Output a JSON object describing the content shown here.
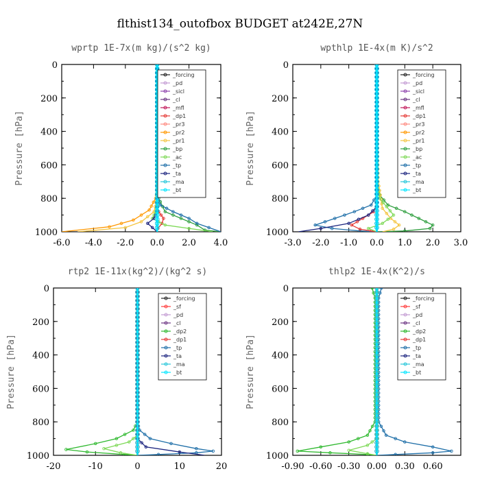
{
  "title": "flthist134_outofbox  BUDGET at242E,27N",
  "colors": {
    "forcing": "#222222",
    "pd": "#c39bd3",
    "sicl": "#8e44ad",
    "cl": "#6c3483",
    "mfl": "#c2185b",
    "dp1": "#e53935",
    "pr3": "#ff8a80",
    "pr2": "#ff9800",
    "pr1": "#f4c542",
    "bp": "#2e9e3e",
    "ac": "#7ed957",
    "tp": "#1f6fa8",
    "ta": "#1a237e",
    "ma": "#26c6da",
    "bt": "#00e5ff",
    "sf": "#ff3b3b",
    "dp2": "#2eb82e"
  },
  "chart_data": [
    {
      "type": "line",
      "title": "wprtp   1E-7x(m kg)/(s^2 kg)",
      "ylabel": "Pressure [hPa]",
      "xlim": [
        -6,
        4
      ],
      "ylim": [
        0,
        1000
      ],
      "x_ticks": [
        "-6.0",
        "-4.0",
        "-2.0",
        "0.0",
        "2.0",
        "4.0"
      ],
      "y_ticks": [
        "0",
        "200",
        "400",
        "600",
        "800",
        "1000"
      ],
      "legend": [
        "_forcing",
        "_pd",
        "_sicl",
        "_cl",
        "_mfl",
        "_dp1",
        "_pr3",
        "_pr2",
        "_pr1",
        "_bp",
        "_ac",
        "_tp",
        "_ta",
        "_ma",
        "_bt"
      ],
      "legend_position": "top-right",
      "series": [
        {
          "key": "pr2",
          "x": [
            0,
            0,
            -0.1,
            -0.5,
            -1.5,
            -3.0,
            -6.0
          ],
          "y": [
            0,
            760,
            800,
            870,
            930,
            970,
            1000
          ]
        },
        {
          "key": "pr1",
          "x": [
            0,
            0,
            -0.05,
            -0.2,
            -1.0,
            -2.0,
            -5.0
          ],
          "y": [
            0,
            780,
            820,
            880,
            940,
            975,
            1000
          ]
        },
        {
          "key": "bp",
          "x": [
            0,
            0,
            0.2,
            0.5,
            1.5,
            2.5,
            3.0,
            4.0
          ],
          "y": [
            0,
            780,
            820,
            880,
            920,
            960,
            990,
            1000
          ]
        },
        {
          "key": "tp",
          "x": [
            0,
            0,
            0.2,
            1.0,
            2.0,
            2.5,
            4.0
          ],
          "y": [
            0,
            790,
            840,
            880,
            920,
            950,
            1000
          ]
        },
        {
          "key": "dp1",
          "x": [
            0,
            0,
            0.1,
            0.4,
            0.3,
            0.05,
            0
          ],
          "y": [
            0,
            850,
            880,
            920,
            950,
            980,
            1000
          ]
        },
        {
          "key": "ac",
          "x": [
            0,
            0,
            -0.1,
            -0.3,
            0.5,
            3.5
          ],
          "y": [
            0,
            840,
            880,
            920,
            960,
            1000
          ]
        },
        {
          "key": "ta",
          "x": [
            0,
            0,
            -0.2,
            -0.6,
            -0.3,
            0.0
          ],
          "y": [
            0,
            880,
            920,
            950,
            975,
            1000
          ]
        },
        {
          "key": "forcing",
          "x": [
            0,
            0
          ],
          "y": [
            0,
            1000
          ]
        },
        {
          "key": "ma",
          "x": [
            0,
            0
          ],
          "y": [
            0,
            1000
          ]
        },
        {
          "key": "bt",
          "x": [
            0,
            0
          ],
          "y": [
            0,
            1000
          ]
        }
      ]
    },
    {
      "type": "line",
      "title": "wpthlp   1E-4x(m K)/s^2",
      "ylabel": "Pressure [hPa]",
      "xlim": [
        -3,
        3
      ],
      "ylim": [
        0,
        1000
      ],
      "x_ticks": [
        "-3.0",
        "-2.0",
        "-1.0",
        "0.0",
        "1.0",
        "2.0",
        "3.0"
      ],
      "y_ticks": [
        "0",
        "200",
        "400",
        "600",
        "800",
        "1000"
      ],
      "legend": [
        "_forcing",
        "_pd",
        "_sicl",
        "_cl",
        "_mfl",
        "_dp1",
        "_pr3",
        "_pr2",
        "_pr1",
        "_bp",
        "_ac",
        "_tp",
        "_ta",
        "_ma",
        "_bt"
      ],
      "legend_position": "top-right",
      "series": [
        {
          "key": "bp",
          "x": [
            0,
            0,
            0.1,
            0.4,
            1.0,
            1.5,
            2.0,
            1.9,
            1.0,
            0
          ],
          "y": [
            0,
            700,
            780,
            840,
            880,
            920,
            960,
            980,
            995,
            1000
          ]
        },
        {
          "key": "pr1",
          "x": [
            0,
            0,
            0.05,
            0.2,
            0.5,
            0.8,
            0.6,
            0.2
          ],
          "y": [
            0,
            100,
            700,
            860,
            920,
            960,
            985,
            1000
          ]
        },
        {
          "key": "tp",
          "x": [
            0,
            0,
            -0.2,
            -0.8,
            -1.5,
            -2.2,
            -1.6,
            -0.6,
            0
          ],
          "y": [
            0,
            780,
            840,
            880,
            920,
            960,
            980,
            995,
            1000
          ]
        },
        {
          "key": "dp1",
          "x": [
            0,
            0,
            -0.1,
            -0.5,
            -0.9,
            -0.6,
            -0.2,
            0
          ],
          "y": [
            0,
            850,
            880,
            920,
            960,
            985,
            995,
            1000
          ]
        },
        {
          "key": "ac",
          "x": [
            0,
            0,
            0.1,
            0.6,
            0.2,
            -0.3,
            0
          ],
          "y": [
            0,
            700,
            800,
            900,
            950,
            980,
            1000
          ]
        },
        {
          "key": "ta",
          "x": [
            0,
            0,
            -0.3,
            -1.0,
            -2.0,
            -2.8
          ],
          "y": [
            0,
            850,
            900,
            950,
            980,
            1000
          ]
        },
        {
          "key": "forcing",
          "x": [
            0,
            0
          ],
          "y": [
            0,
            1000
          ]
        },
        {
          "key": "pd",
          "x": [
            0,
            0
          ],
          "y": [
            0,
            1000
          ]
        },
        {
          "key": "cl",
          "x": [
            0,
            0
          ],
          "y": [
            0,
            1000
          ]
        },
        {
          "key": "ma",
          "x": [
            0,
            0
          ],
          "y": [
            0,
            1000
          ]
        },
        {
          "key": "bt",
          "x": [
            0,
            0
          ],
          "y": [
            0,
            1000
          ]
        }
      ]
    },
    {
      "type": "line",
      "title": "rtp2   1E-11x(kg^2)/(kg^2 s)",
      "ylabel": "Pressure [hPa]",
      "xlim": [
        -20,
        20
      ],
      "ylim": [
        0,
        1000
      ],
      "x_ticks": [
        "-20",
        "-10",
        "0",
        "10",
        "20"
      ],
      "y_ticks": [
        "0",
        "200",
        "400",
        "600",
        "800",
        "1000"
      ],
      "legend": [
        "_forcing",
        "_sf",
        "_pd",
        "_cl",
        "_dp2",
        "_dp1",
        "_tp",
        "_ta",
        "_ma",
        "_bt"
      ],
      "legend_position": "top-right",
      "series": [
        {
          "key": "tp",
          "x": [
            0,
            0,
            0.5,
            3.0,
            8.0,
            14.0,
            18.0,
            14.0,
            5.0,
            0
          ],
          "y": [
            0,
            800,
            850,
            900,
            930,
            960,
            975,
            985,
            995,
            1000
          ]
        },
        {
          "key": "dp2",
          "x": [
            0,
            0,
            -1.0,
            -5.0,
            -10.0,
            -17.0,
            -12.0,
            -3.0,
            0
          ],
          "y": [
            0,
            800,
            850,
            900,
            930,
            965,
            980,
            995,
            1000
          ]
        },
        {
          "key": "ac",
          "x": [
            0,
            0,
            -2.0,
            -8.0,
            -4.0,
            0
          ],
          "y": [
            0,
            880,
            920,
            960,
            985,
            1000
          ]
        },
        {
          "key": "ta",
          "x": [
            0,
            0,
            2.0,
            10.0,
            16.0
          ],
          "y": [
            0,
            900,
            950,
            980,
            1000
          ]
        },
        {
          "key": "forcing",
          "x": [
            0,
            0
          ],
          "y": [
            0,
            1000
          ]
        },
        {
          "key": "sf",
          "x": [
            0,
            0
          ],
          "y": [
            0,
            1000
          ]
        },
        {
          "key": "dp1",
          "x": [
            0,
            0
          ],
          "y": [
            0,
            1000
          ]
        },
        {
          "key": "bt",
          "x": [
            0,
            0
          ],
          "y": [
            0,
            1000
          ]
        }
      ]
    },
    {
      "type": "line",
      "title": "thlp2   1E-4x(K^2)/s",
      "ylabel": "Pressure [hPa]",
      "xlim": [
        -0.9,
        0.9
      ],
      "ylim": [
        0,
        1000
      ],
      "x_ticks": [
        "-0.90",
        "-0.60",
        "-0.30",
        "0.00",
        "0.30",
        "0.60"
      ],
      "y_ticks": [
        "0",
        "200",
        "400",
        "600",
        "800",
        "1000"
      ],
      "legend": [
        "_forcing",
        "_sf",
        "_pd",
        "_cl",
        "_dp2",
        "_dp1",
        "_tp",
        "_ta",
        "_ma",
        "_bt"
      ],
      "legend_position": "top-right",
      "series": [
        {
          "key": "tp",
          "x": [
            0.05,
            0.02,
            0.02,
            0.1,
            0.3,
            0.6,
            0.8,
            0.6,
            0.2,
            0
          ],
          "y": [
            0,
            60,
            800,
            880,
            920,
            950,
            975,
            985,
            995,
            1000
          ]
        },
        {
          "key": "dp2",
          "x": [
            -0.05,
            -0.02,
            -0.02,
            -0.1,
            -0.3,
            -0.6,
            -0.85,
            -0.5,
            -0.1,
            0
          ],
          "y": [
            0,
            60,
            800,
            880,
            920,
            950,
            975,
            985,
            995,
            1000
          ]
        },
        {
          "key": "ac",
          "x": [
            0,
            0,
            -0.1,
            -0.3,
            -0.1,
            0
          ],
          "y": [
            0,
            900,
            940,
            970,
            990,
            1000
          ]
        },
        {
          "key": "forcing",
          "x": [
            0,
            0
          ],
          "y": [
            0,
            1000
          ]
        },
        {
          "key": "sf",
          "x": [
            0,
            0
          ],
          "y": [
            0,
            1000
          ]
        },
        {
          "key": "dp1",
          "x": [
            0,
            0
          ],
          "y": [
            0,
            1000
          ]
        },
        {
          "key": "bt",
          "x": [
            0,
            0
          ],
          "y": [
            0,
            1000
          ]
        }
      ]
    }
  ]
}
